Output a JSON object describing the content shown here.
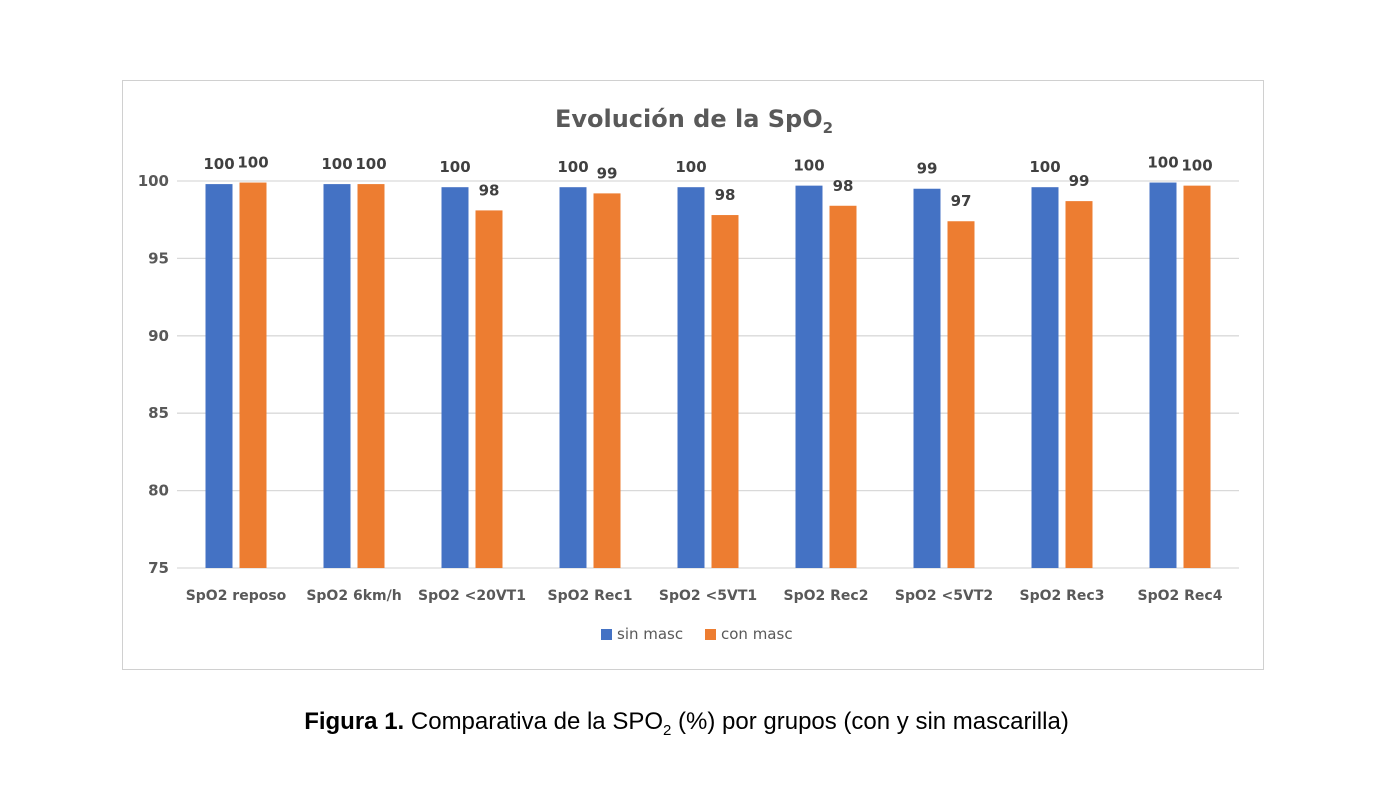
{
  "chart_data": {
    "type": "bar",
    "title": {
      "main": "Evolución de la SpO",
      "sub": "2"
    },
    "categories": [
      "SpO2 reposo",
      "SpO2 6km/h",
      "SpO2 <20VT1",
      "SpO2 Rec1",
      "SpO2 <5VT1",
      "SpO2 Rec2",
      "SpO2 <5VT2",
      "SpO2 Rec3",
      "SpO2 Rec4"
    ],
    "series": [
      {
        "name": "sin masc",
        "color": "#4472C4",
        "values": [
          99.8,
          99.8,
          99.6,
          99.6,
          99.6,
          99.7,
          99.5,
          99.6,
          99.9
        ],
        "labels": [
          "100",
          "100",
          "100",
          "100",
          "100",
          "100",
          "99",
          "100",
          "100"
        ]
      },
      {
        "name": "con masc",
        "color": "#ED7D31",
        "values": [
          99.9,
          99.8,
          98.1,
          99.2,
          97.8,
          98.4,
          97.4,
          98.7,
          99.7
        ],
        "labels": [
          "100",
          "100",
          "98",
          "99",
          "98",
          "98",
          "97",
          "99",
          "100"
        ]
      }
    ],
    "ylim": [
      75,
      100
    ],
    "yticks": [
      "75",
      "80",
      "85",
      "90",
      "95",
      "100"
    ],
    "grid": true,
    "legend": "bottom"
  },
  "caption": {
    "bold": "Figura 1.",
    "text_before_sub": " Comparativa de la SPO",
    "sub": "2",
    "text_after_sub": " (%) por grupos (con y sin mascarilla)"
  }
}
